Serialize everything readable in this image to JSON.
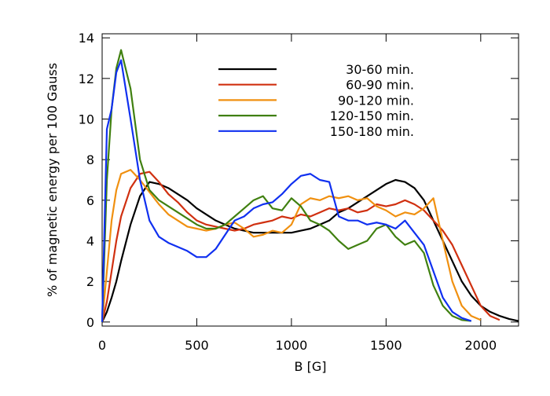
{
  "chart_data": {
    "type": "line",
    "xlabel": "B [G]",
    "ylabel": "% of magnetic energy per 100 Gauss",
    "x": [
      0,
      25,
      50,
      75,
      100,
      150,
      200,
      250,
      300,
      350,
      400,
      450,
      500,
      550,
      600,
      650,
      700,
      750,
      800,
      850,
      900,
      950,
      1000,
      1050,
      1100,
      1150,
      1200,
      1250,
      1300,
      1350,
      1400,
      1450,
      1500,
      1550,
      1600,
      1650,
      1700,
      1750,
      1800,
      1850,
      1900,
      1950,
      2000,
      2050,
      2100,
      2150,
      2200
    ],
    "series": [
      {
        "name": "30-60 min.",
        "color": "#000000",
        "values": [
          0,
          0.5,
          1.2,
          2.0,
          3.0,
          4.8,
          6.2,
          6.9,
          6.8,
          6.6,
          6.3,
          6.0,
          5.6,
          5.3,
          5.0,
          4.8,
          4.6,
          4.5,
          4.4,
          4.4,
          4.4,
          4.4,
          4.4,
          4.5,
          4.6,
          4.8,
          5.0,
          5.4,
          5.6,
          5.9,
          6.2,
          6.5,
          6.8,
          7.0,
          6.9,
          6.6,
          6.0,
          5.0,
          4.0,
          3.0,
          2.0,
          1.3,
          0.8,
          0.5,
          0.3,
          0.15,
          0.05
        ]
      },
      {
        "name": "60-90 min.",
        "color": "#d03010",
        "values": [
          0,
          1.0,
          2.5,
          4.0,
          5.2,
          6.6,
          7.3,
          7.4,
          6.9,
          6.3,
          5.9,
          5.4,
          5.0,
          4.8,
          4.7,
          4.6,
          4.5,
          4.6,
          4.8,
          4.9,
          5.0,
          5.2,
          5.1,
          5.3,
          5.2,
          5.4,
          5.6,
          5.5,
          5.6,
          5.4,
          5.5,
          5.8,
          5.7,
          5.8,
          6.0,
          5.8,
          5.5,
          5.0,
          4.5,
          3.8,
          2.8,
          1.8,
          0.8,
          0.3,
          0.1,
          null,
          null
        ]
      },
      {
        "name": "90-120 min.",
        "color": "#f09010",
        "values": [
          0,
          2.5,
          5.0,
          6.5,
          7.3,
          7.5,
          7.0,
          6.4,
          5.8,
          5.3,
          5.0,
          4.7,
          4.6,
          4.5,
          4.6,
          4.8,
          4.9,
          4.6,
          4.2,
          4.3,
          4.5,
          4.4,
          4.8,
          5.8,
          6.1,
          6.0,
          6.2,
          6.1,
          6.2,
          6.0,
          6.1,
          5.7,
          5.5,
          5.2,
          5.4,
          5.3,
          5.6,
          6.1,
          4.0,
          2.0,
          0.8,
          0.3,
          0.1,
          null,
          null,
          null,
          null
        ]
      },
      {
        "name": "120-150 min.",
        "color": "#408010",
        "values": [
          0,
          7.0,
          10.5,
          12.5,
          13.4,
          11.5,
          8.0,
          6.5,
          6.0,
          5.7,
          5.4,
          5.1,
          4.8,
          4.6,
          4.6,
          4.8,
          5.2,
          5.6,
          6.0,
          6.2,
          5.6,
          5.5,
          6.1,
          5.7,
          5.0,
          4.8,
          4.5,
          4.0,
          3.6,
          3.8,
          4.0,
          4.6,
          4.8,
          4.2,
          3.8,
          4.0,
          3.4,
          1.8,
          0.8,
          0.3,
          0.1,
          0.05,
          null,
          null,
          null,
          null,
          null
        ]
      },
      {
        "name": "150-180 min.",
        "color": "#1030f0",
        "values": [
          0,
          9.5,
          10.5,
          12.3,
          12.9,
          10.0,
          7.0,
          5.0,
          4.2,
          3.9,
          3.7,
          3.5,
          3.2,
          3.2,
          3.6,
          4.3,
          5.0,
          5.2,
          5.6,
          5.8,
          5.9,
          6.3,
          6.8,
          7.2,
          7.3,
          7.0,
          6.9,
          5.2,
          5.0,
          5.0,
          4.8,
          4.9,
          4.8,
          4.6,
          5.0,
          4.4,
          3.8,
          2.5,
          1.2,
          0.5,
          0.2,
          0.05,
          null,
          null,
          null,
          null,
          null
        ]
      }
    ],
    "xlim": [
      0,
      2200
    ],
    "ylim": [
      -0.2,
      14.2
    ],
    "xticks": [
      0,
      500,
      1000,
      1500,
      2000
    ],
    "yticks": [
      0,
      2,
      4,
      6,
      8,
      10,
      12,
      14
    ],
    "grid": false
  }
}
